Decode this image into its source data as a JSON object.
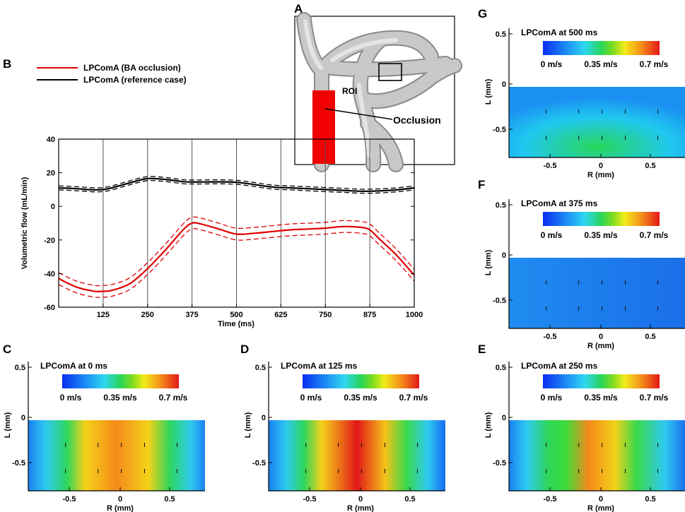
{
  "panels": {
    "A": {
      "letter": "A",
      "roi_label": "ROI",
      "occlusion_label": "Occlusion"
    },
    "B": {
      "letter": "B",
      "legend": [
        {
          "label": "LPComA (BA occlusion)",
          "color": "#e00000"
        },
        {
          "label": "LPComA (reference case)",
          "color": "#000000"
        }
      ]
    }
  },
  "chart_data": {
    "type": "line",
    "xlabel": "Time (ms)",
    "ylabel": "Volumetric flow (mL/min)",
    "xlim": [
      0,
      1000
    ],
    "ylim": [
      -60,
      40
    ],
    "xticks": [
      125,
      250,
      375,
      500,
      625,
      750,
      875,
      1000
    ],
    "yticks": [
      40,
      20,
      0,
      -20,
      -40,
      -60
    ],
    "vertical_gridlines": [
      125,
      250,
      375,
      500,
      625,
      750,
      875
    ],
    "series": [
      {
        "name": "LPComA (BA occlusion)",
        "color": "#e00000",
        "band": 3.5,
        "x": [
          0,
          50,
          100,
          125,
          150,
          200,
          250,
          300,
          350,
          375,
          400,
          450,
          500,
          550,
          600,
          650,
          700,
          750,
          800,
          850,
          875,
          900,
          950,
          1000
        ],
        "y": [
          -43,
          -48,
          -50.5,
          -50.5,
          -50,
          -46,
          -37,
          -26,
          -14,
          -10,
          -10.5,
          -13.5,
          -16.5,
          -16,
          -15,
          -14,
          -13.5,
          -13,
          -12,
          -12.5,
          -14,
          -19,
          -29,
          -41
        ]
      },
      {
        "name": "LPComA (reference case)",
        "color": "#000000",
        "band": 1.2,
        "x": [
          0,
          50,
          100,
          125,
          150,
          200,
          250,
          300,
          350,
          375,
          400,
          450,
          500,
          550,
          600,
          650,
          700,
          750,
          800,
          850,
          875,
          900,
          950,
          1000
        ],
        "y": [
          11,
          10.5,
          9.8,
          10,
          11,
          14,
          16.5,
          16,
          14.7,
          14.5,
          14.5,
          14.6,
          14.3,
          13,
          11.5,
          11,
          10.5,
          10,
          9.5,
          9,
          9,
          9.2,
          9.8,
          11
        ]
      }
    ]
  },
  "velocity_panels": [
    {
      "letter": "G",
      "title": "LPComA at 500 ms",
      "colorbar_labels": [
        "0 m/s",
        "0.35 m/s",
        "0.7 m/s"
      ],
      "peak_velocity_ms": 0.3
    },
    {
      "letter": "F",
      "title": "LPComA at 375 ms",
      "colorbar_labels": [
        "0 m/s",
        "0.35 m/s",
        "0.7 m/s"
      ],
      "peak_velocity_ms": 0.2
    },
    {
      "letter": "C",
      "title": "LPComA at 0 ms",
      "colorbar_labels": [
        "0 m/s",
        "0.35 m/s",
        "0.7 m/s"
      ],
      "peak_velocity_ms": 0.56
    },
    {
      "letter": "D",
      "title": "LPComA at 125 ms",
      "colorbar_labels": [
        "0 m/s",
        "0.35 m/s",
        "0.7 m/s"
      ],
      "peak_velocity_ms": 0.62
    },
    {
      "letter": "E",
      "title": "LPComA at 250 ms",
      "colorbar_labels": [
        "0 m/s",
        "0.35 m/s",
        "0.7 m/s"
      ],
      "peak_velocity_ms": 0.55
    }
  ],
  "velocity_axes": {
    "xlabel": "R (mm)",
    "ylabel": "L (mm)",
    "xticks": [
      "-0.5",
      "0",
      "0.5"
    ],
    "yticks": [
      "0.5",
      "0",
      "-0.5"
    ]
  },
  "colors": {
    "occlusion": "#f00000",
    "vessel": "#bdbdbd"
  }
}
